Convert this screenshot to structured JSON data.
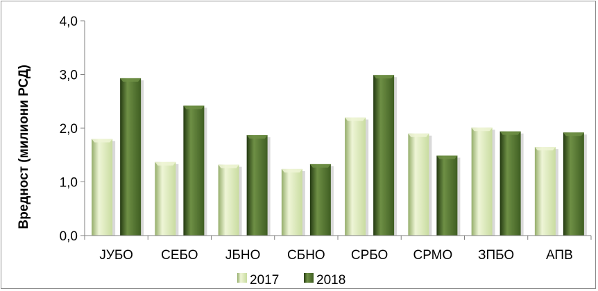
{
  "chart_data": {
    "type": "bar",
    "title": "",
    "xlabel": "",
    "ylabel": "Вредност (милиони  РСД)",
    "ylim": [
      0,
      4
    ],
    "ytick_values": [
      0,
      1,
      2,
      3,
      4
    ],
    "ytick_labels": [
      "0,0",
      "1,0",
      "2,0",
      "3,0",
      "4,0"
    ],
    "categories": [
      "ЈУБО",
      "СЕБО",
      "ЈБНО",
      "СБНО",
      "СРБО",
      "СРМО",
      "ЗПБО",
      "АПВ"
    ],
    "series": [
      {
        "name": "2017",
        "values": [
          1.8,
          1.37,
          1.32,
          1.24,
          2.2,
          1.9,
          2.01,
          1.65
        ]
      },
      {
        "name": "2018",
        "values": [
          2.93,
          2.42,
          1.87,
          1.33,
          2.99,
          1.49,
          1.94,
          1.92
        ]
      }
    ],
    "grid": false,
    "legend": "bottom",
    "colors": {
      "2017": {
        "light": "#eef5d6",
        "mid": "#c9dca0",
        "dark": "#94ad6a"
      },
      "2018": {
        "light": "#6e8f45",
        "mid": "#3f5e22",
        "dark": "#243a12"
      }
    }
  }
}
